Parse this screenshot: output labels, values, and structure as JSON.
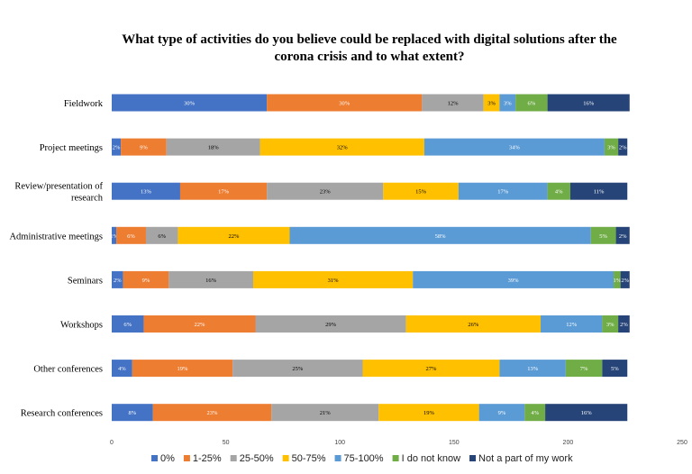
{
  "chart_data": {
    "type": "bar",
    "stacked": true,
    "orientation": "horizontal",
    "title": "What type of activities do you believe could be replaced with digital solutions after the corona crisis and to what extent?",
    "title_lines": [
      "What type of activities do you believe could be replaced with digital solutions after the",
      "corona crisis and to what extent?"
    ],
    "xlim": [
      0,
      250
    ],
    "x_ticks": [
      0,
      50,
      100,
      150,
      200,
      250
    ],
    "grid": false,
    "legend_position": "bottom",
    "categories": [
      "Fieldwork",
      "Project meetings",
      "Review/presentation of research",
      "Administrative meetings",
      "Seminars",
      "Workshops",
      "Other conferences",
      "Research conferences"
    ],
    "category_lines": [
      [
        "Fieldwork"
      ],
      [
        "Project meetings"
      ],
      [
        "Review/presentation of",
        "research"
      ],
      [
        "Administrative meetings"
      ],
      [
        "Seminars"
      ],
      [
        "Workshops"
      ],
      [
        "Other conferences"
      ],
      [
        "Research conferences"
      ]
    ],
    "series": [
      {
        "name": "0%",
        "color": "#4472C4",
        "values": [
          68,
          4,
          30,
          2,
          5,
          14,
          9,
          18
        ],
        "labels": [
          "30%",
          "2%",
          "13%",
          "1%",
          "2%",
          "6%",
          "4%",
          "8%"
        ]
      },
      {
        "name": "1-25%",
        "color": "#ED7D31",
        "values": [
          68,
          20,
          38,
          13,
          20,
          49,
          44,
          52
        ],
        "labels": [
          "30%",
          "9%",
          "17%",
          "6%",
          "9%",
          "22%",
          "19%",
          "23%"
        ]
      },
      {
        "name": "25-50%",
        "color": "#A5A5A5",
        "values": [
          27,
          41,
          51,
          14,
          37,
          66,
          57,
          47
        ],
        "labels": [
          "12%",
          "18%",
          "23%",
          "6%",
          "16%",
          "29%",
          "25%",
          "21%"
        ]
      },
      {
        "name": "50-75%",
        "color": "#FFC000",
        "values": [
          7,
          72,
          33,
          49,
          70,
          59,
          60,
          44
        ],
        "labels": [
          "3%",
          "32%",
          "15%",
          "22%",
          "31%",
          "26%",
          "27%",
          "19%"
        ]
      },
      {
        "name": "75-100%",
        "color": "#5B9BD5",
        "values": [
          7,
          79,
          39,
          132,
          88,
          27,
          29,
          20
        ],
        "labels": [
          "3%",
          "34%",
          "17%",
          "58%",
          "39%",
          "12%",
          "13%",
          "9%"
        ]
      },
      {
        "name": "I do not know",
        "color": "#70AD47",
        "values": [
          14,
          6,
          10,
          11,
          3,
          7,
          16,
          9
        ],
        "labels": [
          "6%",
          "3%",
          "4%",
          "5%",
          "1%",
          "3%",
          "7%",
          "4%"
        ]
      },
      {
        "name": "Not a part of my work",
        "color": "#264478",
        "values": [
          36,
          4,
          25,
          6,
          4,
          5,
          11,
          36
        ],
        "labels": [
          "16%",
          "2%",
          "11%",
          "2%",
          "2%",
          "2%",
          "5%",
          "16%"
        ]
      }
    ]
  }
}
